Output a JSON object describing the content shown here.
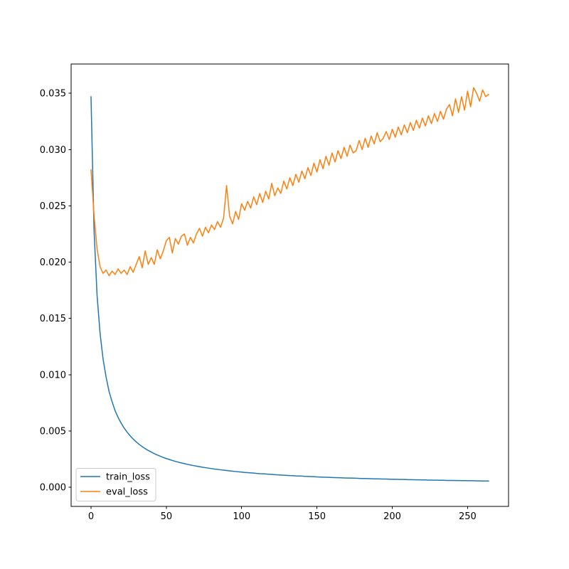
{
  "figure": {
    "background": "#ffffff",
    "spine_color": "#000000",
    "tick_color": "#000000",
    "legend_background": "#ffffff",
    "legend_border": "#cccccc"
  },
  "chart_data": {
    "type": "line",
    "title": "",
    "xlabel": "",
    "ylabel": "",
    "grid": false,
    "xlim": [
      -13.2,
      277.2
    ],
    "ylim": [
      -0.0017,
      0.0376
    ],
    "xticks": {
      "values": [
        0,
        50,
        100,
        150,
        200,
        250
      ],
      "labels": [
        "0",
        "50",
        "100",
        "150",
        "200",
        "250"
      ]
    },
    "yticks": {
      "values": [
        0.0,
        0.005,
        0.01,
        0.015,
        0.02,
        0.025,
        0.03,
        0.035
      ],
      "labels": [
        "0.000",
        "0.005",
        "0.010",
        "0.015",
        "0.020",
        "0.025",
        "0.030",
        "0.035"
      ]
    },
    "legend": {
      "position": "lower-left",
      "entries": [
        "train_loss",
        "eval_loss"
      ]
    },
    "x": [
      0,
      2,
      4,
      6,
      8,
      10,
      12,
      14,
      16,
      18,
      20,
      22,
      24,
      26,
      28,
      30,
      32,
      34,
      36,
      38,
      40,
      42,
      44,
      46,
      48,
      50,
      52,
      54,
      56,
      58,
      60,
      62,
      64,
      66,
      68,
      70,
      72,
      74,
      76,
      78,
      80,
      82,
      84,
      86,
      88,
      90,
      92,
      94,
      96,
      98,
      100,
      102,
      104,
      106,
      108,
      110,
      112,
      114,
      116,
      118,
      120,
      122,
      124,
      126,
      128,
      130,
      132,
      134,
      136,
      138,
      140,
      142,
      144,
      146,
      148,
      150,
      152,
      154,
      156,
      158,
      160,
      162,
      164,
      166,
      168,
      170,
      172,
      174,
      176,
      178,
      180,
      182,
      184,
      186,
      188,
      190,
      192,
      194,
      196,
      198,
      200,
      202,
      204,
      206,
      208,
      210,
      212,
      214,
      216,
      218,
      220,
      222,
      224,
      226,
      228,
      230,
      232,
      234,
      236,
      238,
      240,
      242,
      244,
      246,
      248,
      250,
      252,
      254,
      256,
      258,
      260,
      262,
      264
    ],
    "series": [
      {
        "name": "train_loss",
        "color": "#1f77b4",
        "values": [
          0.0347,
          0.0229,
          0.0171,
          0.0137,
          0.0114,
          0.0098,
          0.0085,
          0.0076,
          0.0068,
          0.0062,
          0.0057,
          0.00526,
          0.00489,
          0.00457,
          0.00428,
          0.00403,
          0.00381,
          0.00361,
          0.00343,
          0.00327,
          0.00313,
          0.00299,
          0.00287,
          0.00276,
          0.00265,
          0.00255,
          0.00247,
          0.00238,
          0.0023,
          0.00223,
          0.00216,
          0.0021,
          0.00204,
          0.00198,
          0.00193,
          0.00188,
          0.00183,
          0.00178,
          0.00174,
          0.0017,
          0.00166,
          0.00162,
          0.00159,
          0.00155,
          0.00152,
          0.00149,
          0.00146,
          0.00143,
          0.0014,
          0.00137,
          0.00135,
          0.00132,
          0.0013,
          0.00128,
          0.00126,
          0.00123,
          0.00121,
          0.0012,
          0.00118,
          0.00116,
          0.00114,
          0.00112,
          0.0011,
          0.00109,
          0.00107,
          0.00106,
          0.00104,
          0.00103,
          0.00101,
          0.001,
          0.00099,
          0.00097,
          0.00096,
          0.00095,
          0.00094,
          0.00092,
          0.00091,
          0.0009,
          0.00089,
          0.00088,
          0.00087,
          0.00086,
          0.00085,
          0.00084,
          0.00083,
          0.00082,
          0.00082,
          0.00081,
          0.0008,
          0.00079,
          0.00078,
          0.00078,
          0.00077,
          0.00076,
          0.00075,
          0.00075,
          0.00074,
          0.00073,
          0.00073,
          0.00072,
          0.00071,
          0.00071,
          0.0007,
          0.00069,
          0.00069,
          0.00068,
          0.00068,
          0.00067,
          0.00066,
          0.00066,
          0.00065,
          0.00065,
          0.00064,
          0.00064,
          0.00063,
          0.00063,
          0.00062,
          0.00062,
          0.00061,
          0.00061,
          0.00061,
          0.0006,
          0.0006,
          0.00059,
          0.00059,
          0.00058,
          0.00058,
          0.00058,
          0.00057,
          0.00057,
          0.00056,
          0.00056,
          0.00056
        ]
      },
      {
        "name": "eval_loss",
        "color": "#ff7f0e",
        "values": [
          0.0282,
          0.0242,
          0.0212,
          0.0196,
          0.019,
          0.0193,
          0.0188,
          0.0192,
          0.0189,
          0.0194,
          0.019,
          0.0193,
          0.0189,
          0.0196,
          0.0191,
          0.0198,
          0.0205,
          0.0195,
          0.021,
          0.0198,
          0.0204,
          0.0198,
          0.0211,
          0.0203,
          0.021,
          0.0219,
          0.0222,
          0.0208,
          0.0221,
          0.0216,
          0.0223,
          0.0225,
          0.0215,
          0.0222,
          0.0217,
          0.0225,
          0.023,
          0.0223,
          0.0231,
          0.0226,
          0.0233,
          0.0229,
          0.0236,
          0.0231,
          0.0239,
          0.0268,
          0.0241,
          0.0234,
          0.0245,
          0.0238,
          0.0252,
          0.0246,
          0.0254,
          0.0248,
          0.0258,
          0.0251,
          0.0261,
          0.0253,
          0.0263,
          0.0256,
          0.027,
          0.0259,
          0.0266,
          0.0261,
          0.0272,
          0.0265,
          0.0275,
          0.0268,
          0.0278,
          0.0271,
          0.0281,
          0.0274,
          0.0284,
          0.0277,
          0.0288,
          0.028,
          0.0291,
          0.0283,
          0.0294,
          0.0286,
          0.0297,
          0.0289,
          0.0299,
          0.0292,
          0.0302,
          0.0294,
          0.0304,
          0.0297,
          0.0299,
          0.0308,
          0.03,
          0.031,
          0.0302,
          0.0312,
          0.0305,
          0.0315,
          0.0307,
          0.031,
          0.0316,
          0.0309,
          0.0318,
          0.0311,
          0.032,
          0.0313,
          0.0322,
          0.0315,
          0.0324,
          0.0317,
          0.0326,
          0.0319,
          0.0328,
          0.0321,
          0.033,
          0.0323,
          0.0332,
          0.0325,
          0.0334,
          0.0327,
          0.0336,
          0.034,
          0.033,
          0.0345,
          0.0333,
          0.0347,
          0.0335,
          0.0352,
          0.0338,
          0.0355,
          0.035,
          0.0343,
          0.0353,
          0.0347,
          0.0349
        ]
      }
    ]
  }
}
